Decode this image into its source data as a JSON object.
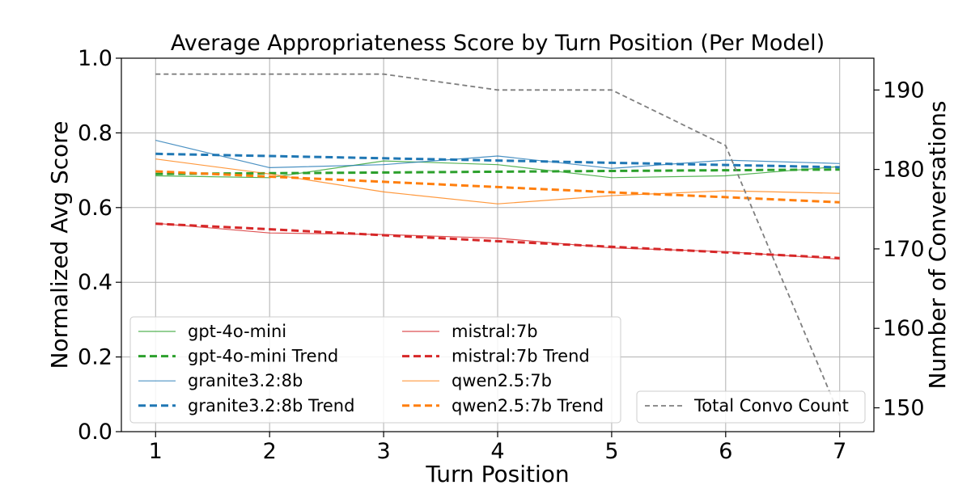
{
  "chart_data": {
    "type": "line",
    "title": "Average Appropriateness Score by Turn Position (Per Model)",
    "xlabel": "Turn Position",
    "ylabel": "Normalized Avg Score",
    "y2label": "Number of Conversations",
    "x": [
      1,
      2,
      3,
      4,
      5,
      6,
      7
    ],
    "xticks": [
      "1",
      "2",
      "3",
      "4",
      "5",
      "6",
      "7"
    ],
    "ylim": [
      0,
      1
    ],
    "yticks": [
      "0.0",
      "0.2",
      "0.4",
      "0.6",
      "0.8",
      "1.0"
    ],
    "y2lim": [
      147,
      194
    ],
    "y2ticks": [
      "150",
      "160",
      "170",
      "180",
      "190"
    ],
    "grid": true,
    "series": [
      {
        "name": "gpt-4o-mini",
        "color": "#2ca02c",
        "style": "solid",
        "axis": "left",
        "values": [
          0.685,
          0.68,
          0.725,
          0.715,
          0.68,
          0.685,
          0.71
        ]
      },
      {
        "name": "gpt-4o-mini Trend",
        "color": "#2ca02c",
        "style": "dashed",
        "axis": "left",
        "values": [
          0.69,
          0.692,
          0.694,
          0.696,
          0.698,
          0.7,
          0.702
        ]
      },
      {
        "name": "granite3.2:8b",
        "color": "#1f77b4",
        "style": "solid",
        "axis": "left",
        "values": [
          0.78,
          0.707,
          0.715,
          0.738,
          0.705,
          0.727,
          0.718
        ]
      },
      {
        "name": "granite3.2:8b Trend",
        "color": "#1f77b4",
        "style": "dashed",
        "axis": "left",
        "values": [
          0.744,
          0.738,
          0.732,
          0.726,
          0.72,
          0.714,
          0.708
        ]
      },
      {
        "name": "mistral:7b",
        "color": "#d62728",
        "style": "solid",
        "axis": "left",
        "values": [
          0.558,
          0.532,
          0.528,
          0.518,
          0.492,
          0.482,
          0.462
        ]
      },
      {
        "name": "mistral:7b Trend",
        "color": "#d62728",
        "style": "dashed",
        "axis": "left",
        "values": [
          0.557,
          0.542,
          0.526,
          0.51,
          0.495,
          0.48,
          0.465
        ]
      },
      {
        "name": "qwen2.5:7b",
        "color": "#ff7f0e",
        "style": "solid",
        "axis": "left",
        "values": [
          0.73,
          0.69,
          0.642,
          0.61,
          0.632,
          0.645,
          0.638
        ]
      },
      {
        "name": "qwen2.5:7b Trend",
        "color": "#ff7f0e",
        "style": "dashed",
        "axis": "left",
        "values": [
          0.697,
          0.683,
          0.669,
          0.655,
          0.641,
          0.628,
          0.614
        ]
      },
      {
        "name": "Total Convo Count",
        "color": "#7f7f7f",
        "style": "dashed",
        "axis": "right",
        "values": [
          192,
          192,
          192,
          190,
          190,
          183,
          149
        ]
      }
    ],
    "legends": [
      {
        "placement": "lower-left",
        "entries": [
          "gpt-4o-mini",
          "gpt-4o-mini Trend",
          "granite3.2:8b",
          "granite3.2:8b Trend",
          "mistral:7b",
          "mistral:7b Trend",
          "qwen2.5:7b",
          "qwen2.5:7b Trend"
        ]
      },
      {
        "placement": "lower-right",
        "entries": [
          "Total Convo Count"
        ]
      }
    ]
  }
}
